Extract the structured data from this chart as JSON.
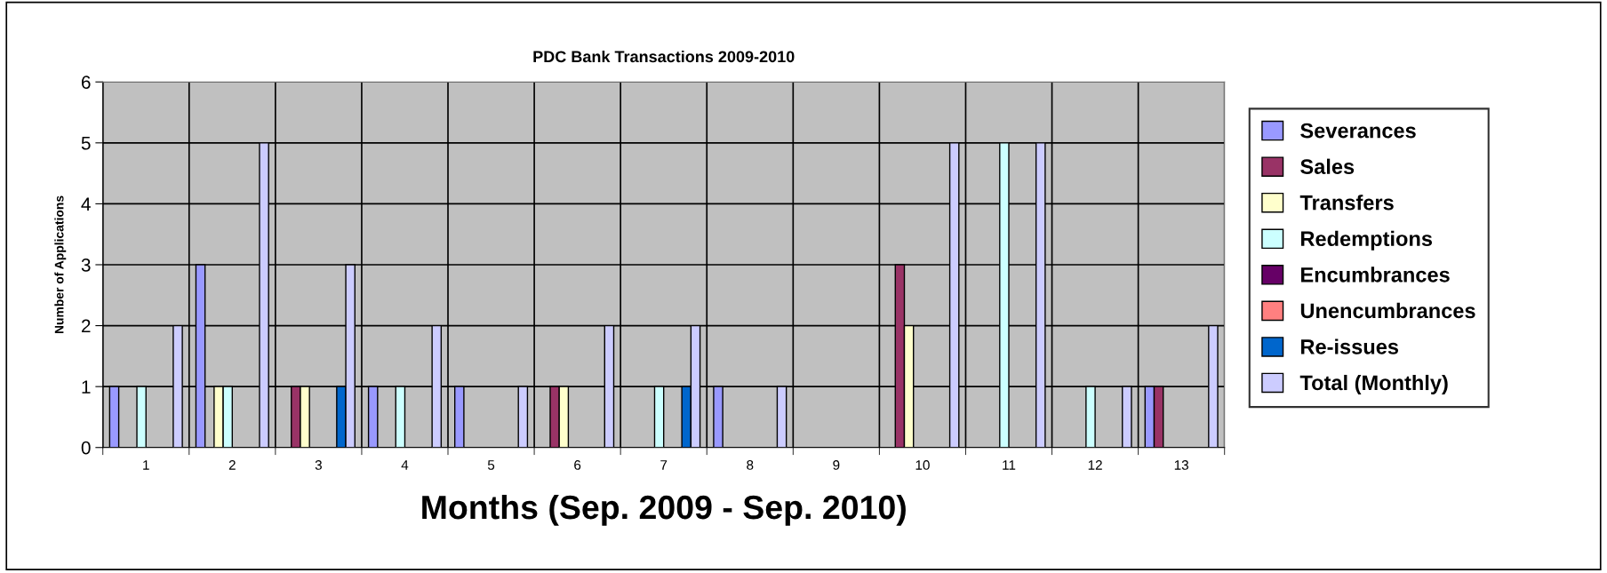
{
  "chart_data": {
    "type": "bar",
    "title": "PDC Bank Transactions 2009-2010",
    "xlabel": "Months (Sep. 2009 - Sep. 2010)",
    "ylabel": "Number of Applications",
    "categories": [
      "1",
      "2",
      "3",
      "4",
      "5",
      "6",
      "7",
      "8",
      "9",
      "10",
      "11",
      "12",
      "13"
    ],
    "series": [
      {
        "name": "Severances",
        "color": "#9999ff",
        "values": [
          1,
          3,
          0,
          1,
          1,
          0,
          0,
          1,
          0,
          0,
          0,
          0,
          1
        ]
      },
      {
        "name": "Sales",
        "color": "#993366",
        "values": [
          0,
          0,
          1,
          0,
          0,
          1,
          0,
          0,
          0,
          3,
          0,
          0,
          1
        ]
      },
      {
        "name": "Transfers",
        "color": "#ffffcc",
        "values": [
          0,
          1,
          1,
          0,
          0,
          1,
          0,
          0,
          0,
          2,
          0,
          0,
          0
        ]
      },
      {
        "name": "Redemptions",
        "color": "#ccffff",
        "values": [
          1,
          1,
          0,
          1,
          0,
          0,
          1,
          0,
          0,
          0,
          5,
          1,
          0
        ]
      },
      {
        "name": "Encumbrances",
        "color": "#660066",
        "values": [
          0,
          0,
          0,
          0,
          0,
          0,
          0,
          0,
          0,
          0,
          0,
          0,
          0
        ]
      },
      {
        "name": "Unencumbrances",
        "color": "#ff8080",
        "values": [
          0,
          0,
          0,
          0,
          0,
          0,
          0,
          0,
          0,
          0,
          0,
          0,
          0
        ]
      },
      {
        "name": "Re-issues",
        "color": "#0066cc",
        "values": [
          0,
          0,
          1,
          0,
          0,
          0,
          1,
          0,
          0,
          0,
          0,
          0,
          0
        ]
      },
      {
        "name": "Total (Monthly)",
        "color": "#ccccff",
        "values": [
          2,
          5,
          3,
          2,
          1,
          2,
          2,
          1,
          0,
          5,
          5,
          1,
          2
        ]
      }
    ],
    "ylim": [
      0,
      6
    ],
    "yticks": [
      0,
      1,
      2,
      3,
      4,
      5,
      6
    ],
    "grid": true,
    "legend": "right"
  }
}
